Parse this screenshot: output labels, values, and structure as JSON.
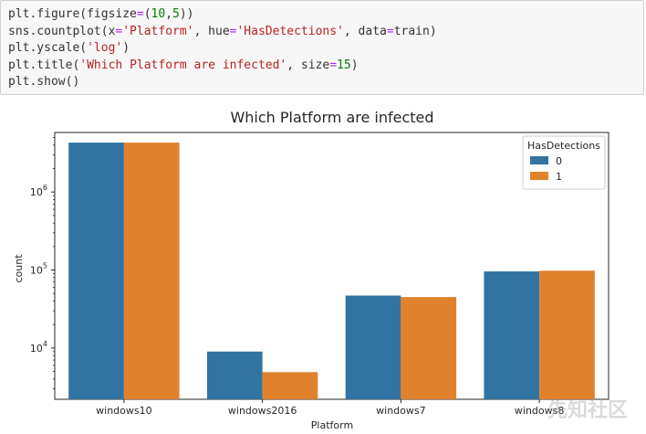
{
  "code_cell": {
    "lines": [
      [
        {
          "t": "plt.figure(figsize",
          "c": "plain"
        },
        {
          "t": "=",
          "c": "op"
        },
        {
          "t": "(",
          "c": "plain"
        },
        {
          "t": "10",
          "c": "num"
        },
        {
          "t": ",",
          "c": "plain"
        },
        {
          "t": "5",
          "c": "num"
        },
        {
          "t": "))",
          "c": "plain"
        }
      ],
      [
        {
          "t": "sns.countplot(x",
          "c": "plain"
        },
        {
          "t": "=",
          "c": "op"
        },
        {
          "t": "'Platform'",
          "c": "str"
        },
        {
          "t": ", hue",
          "c": "plain"
        },
        {
          "t": "=",
          "c": "op"
        },
        {
          "t": "'HasDetections'",
          "c": "str"
        },
        {
          "t": ", data",
          "c": "plain"
        },
        {
          "t": "=",
          "c": "op"
        },
        {
          "t": "train)",
          "c": "plain"
        }
      ],
      [
        {
          "t": "plt.yscale(",
          "c": "plain"
        },
        {
          "t": "'log'",
          "c": "str"
        },
        {
          "t": ")",
          "c": "plain"
        }
      ],
      [
        {
          "t": "plt.title(",
          "c": "plain"
        },
        {
          "t": "'Which Platform are infected'",
          "c": "str"
        },
        {
          "t": ", size",
          "c": "plain"
        },
        {
          "t": "=",
          "c": "op"
        },
        {
          "t": "15",
          "c": "num"
        },
        {
          "t": ")",
          "c": "plain"
        }
      ],
      [
        {
          "t": "plt.show()",
          "c": "plain"
        }
      ]
    ]
  },
  "chart_data": {
    "type": "bar",
    "title": "Which Platform are infected",
    "xlabel": "Platform",
    "ylabel": "count",
    "yscale": "log",
    "ylim": [
      2200,
      5800000
    ],
    "yticks": [
      {
        "value": 10000,
        "base": "10",
        "exp": "4"
      },
      {
        "value": 100000,
        "base": "10",
        "exp": "5"
      },
      {
        "value": 1000000,
        "base": "10",
        "exp": "6"
      }
    ],
    "categories": [
      "windows10",
      "windows2016",
      "windows7",
      "windows8"
    ],
    "series": [
      {
        "name": "0",
        "color": "#3274a1",
        "values": [
          4300000,
          9000,
          47000,
          96000
        ]
      },
      {
        "name": "1",
        "color": "#e1812c",
        "values": [
          4300000,
          4900,
          45000,
          98000
        ]
      }
    ],
    "legend": {
      "title": "HasDetections",
      "placement": "top-right"
    },
    "grid": false
  },
  "watermark": "先知社区"
}
